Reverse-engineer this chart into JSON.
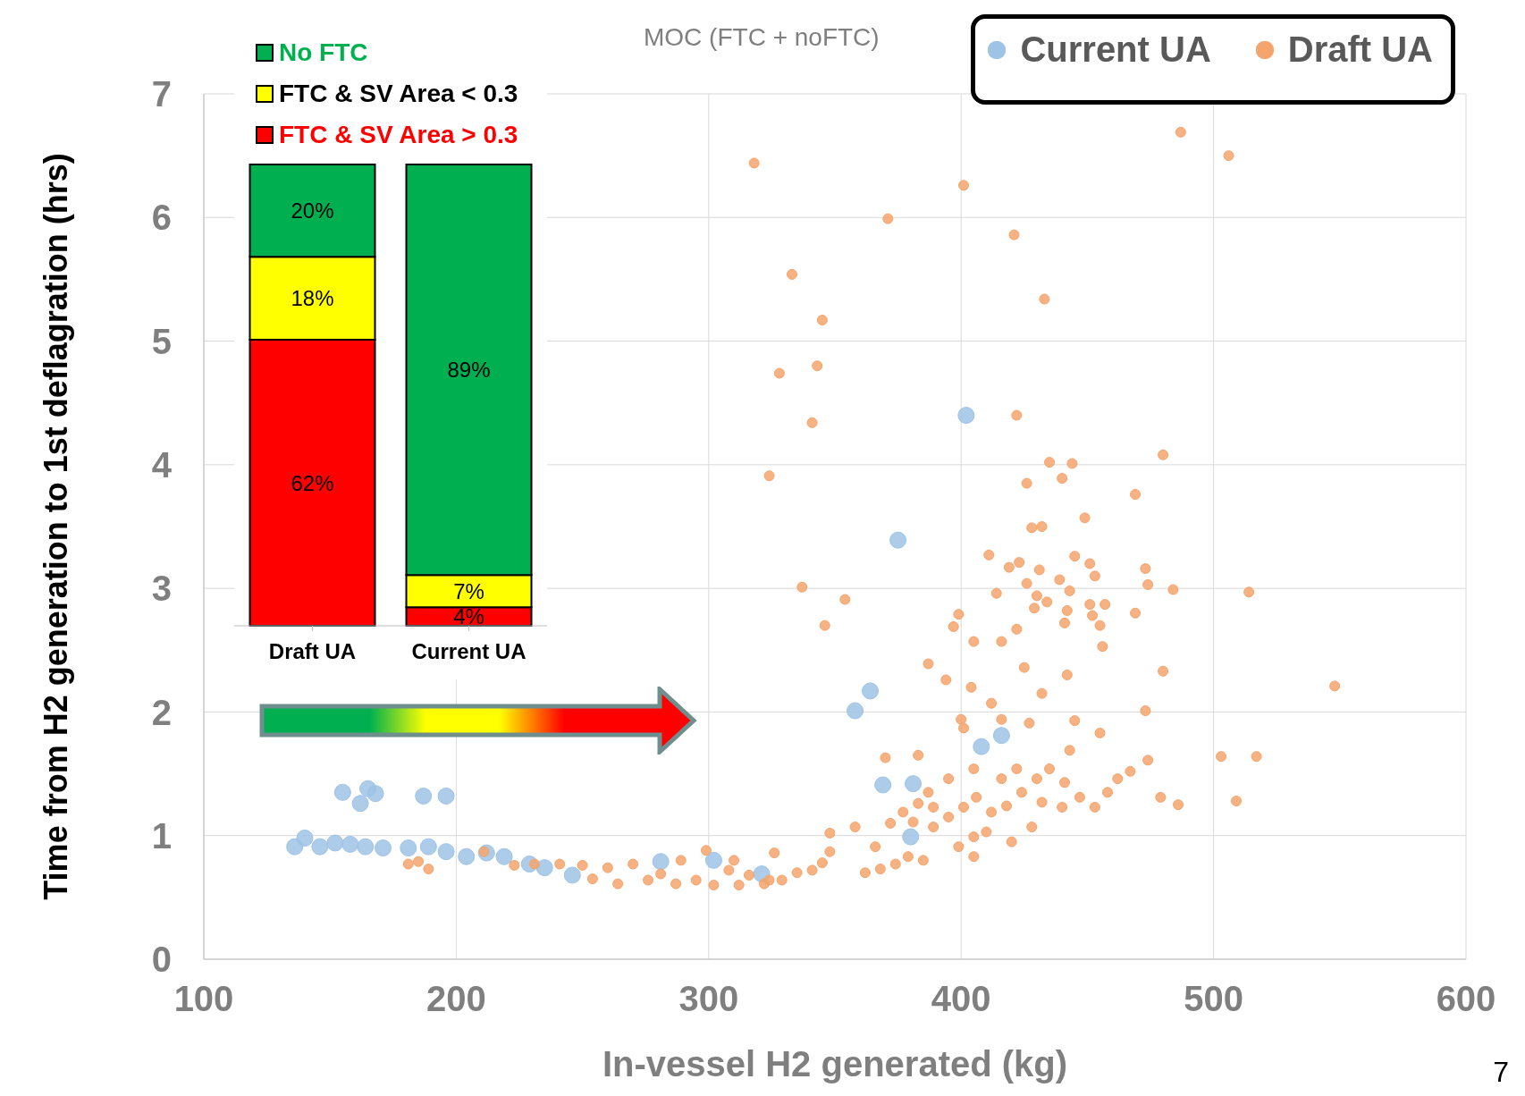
{
  "chart_data": [
    {
      "type": "scatter",
      "xlabel": "In-vessel H2 generated (kg)",
      "ylabel": "Time from H2 generation to 1st deflagration (hrs)",
      "xlim": [
        100,
        600
      ],
      "ylim": [
        0,
        7
      ],
      "xticks": [
        100,
        200,
        300,
        400,
        500,
        600
      ],
      "yticks": [
        0,
        1,
        2,
        3,
        4,
        5,
        6,
        7
      ],
      "grid": true,
      "legend": "top right",
      "marker": "circle",
      "annotations": [
        "MOC (FTC + noFTC)",
        "7"
      ],
      "series": [
        {
          "name": "Current UA",
          "color": "#9dc3e6",
          "x": [
            402,
            375,
            364,
            358,
            416,
            408,
            369,
            381,
            155,
            165,
            168,
            162,
            187,
            196,
            136,
            140,
            146,
            152,
            158,
            164,
            171,
            181,
            189,
            196,
            204,
            212,
            219,
            229,
            235,
            246,
            281,
            302,
            321,
            380
          ],
          "values": [
            4.4,
            3.39,
            2.17,
            2.01,
            1.81,
            1.72,
            1.41,
            1.42,
            1.35,
            1.38,
            1.34,
            1.26,
            1.32,
            1.32,
            0.91,
            0.98,
            0.91,
            0.94,
            0.93,
            0.91,
            0.9,
            0.9,
            0.91,
            0.87,
            0.83,
            0.86,
            0.83,
            0.77,
            0.74,
            0.68,
            0.79,
            0.8,
            0.69,
            0.99
          ]
        },
        {
          "name": "Draft UA",
          "color": "#f4a46c",
          "x": [
            487,
            318,
            506,
            401,
            371,
            421,
            333,
            433,
            345,
            328,
            343,
            341,
            422,
            480,
            324,
            435,
            444,
            426,
            440,
            469,
            449,
            428,
            432,
            411,
            445,
            423,
            419,
            431,
            451,
            473,
            426,
            439,
            453,
            474,
            484,
            514,
            337,
            354,
            414,
            430,
            443,
            434,
            451,
            457,
            429,
            442,
            469,
            452,
            399,
            346,
            397,
            441,
            455,
            422,
            416,
            405,
            456,
            387,
            425,
            480,
            442,
            548,
            394,
            404,
            432,
            412,
            473,
            427,
            445,
            400,
            416,
            455,
            401,
            503,
            517,
            509,
            383,
            370,
            443,
            467,
            474,
            486,
            348,
            362,
            368,
            374,
            379,
            385,
            366,
            372,
            377,
            383,
            389,
            389,
            395,
            401,
            406,
            412,
            418,
            424,
            430,
            435,
            441,
            447,
            453,
            458,
            399,
            405,
            410,
            420,
            428,
            405,
            416,
            422,
            432,
            440,
            462,
            479,
            358,
            395,
            387,
            381,
            405,
            181,
            189,
            185,
            211,
            223,
            231,
            241,
            250,
            254,
            260,
            264,
            270,
            276,
            281,
            287,
            289,
            295,
            299,
            302,
            308,
            312,
            316,
            322,
            326,
            329,
            335,
            341,
            345,
            348,
            310,
            324
          ],
          "values": [
            6.69,
            6.44,
            6.5,
            6.26,
            5.99,
            5.86,
            5.54,
            5.34,
            5.17,
            4.74,
            4.8,
            4.34,
            4.4,
            4.08,
            3.91,
            4.02,
            4.01,
            3.85,
            3.89,
            3.76,
            3.57,
            3.49,
            3.5,
            3.27,
            3.26,
            3.21,
            3.17,
            3.15,
            3.2,
            3.16,
            3.04,
            3.07,
            3.1,
            3.03,
            2.99,
            2.97,
            3.01,
            2.91,
            2.96,
            2.94,
            2.98,
            2.89,
            2.87,
            2.87,
            2.84,
            2.82,
            2.8,
            2.78,
            2.79,
            2.7,
            2.69,
            2.72,
            2.7,
            2.67,
            2.57,
            2.57,
            2.53,
            2.39,
            2.36,
            2.33,
            2.3,
            2.21,
            2.26,
            2.2,
            2.15,
            2.07,
            2.01,
            1.91,
            1.93,
            1.94,
            1.94,
            1.83,
            1.87,
            1.64,
            1.64,
            1.28,
            1.65,
            1.63,
            1.69,
            1.52,
            1.61,
            1.25,
            1.02,
            0.7,
            0.73,
            0.77,
            0.83,
            0.8,
            0.91,
            1.1,
            1.19,
            1.26,
            1.23,
            1.07,
            1.15,
            1.23,
            1.31,
            1.19,
            1.24,
            1.35,
            1.46,
            1.54,
            1.43,
            1.31,
            1.23,
            1.35,
            0.91,
            0.99,
            1.03,
            0.95,
            1.07,
            1.54,
            1.46,
            1.54,
            1.27,
            1.23,
            1.46,
            1.31,
            1.07,
            1.46,
            1.35,
            1.11,
            0.83,
            0.77,
            0.73,
            0.79,
            0.87,
            0.76,
            0.77,
            0.77,
            0.76,
            0.65,
            0.74,
            0.61,
            0.77,
            0.64,
            0.69,
            0.61,
            0.8,
            0.64,
            0.88,
            0.6,
            0.72,
            0.6,
            0.68,
            0.61,
            0.86,
            0.64,
            0.7,
            0.72,
            0.78,
            0.87,
            0.8,
            0.64
          ]
        }
      ]
    },
    {
      "type": "bar",
      "stacked": true,
      "categories": [
        "Draft UA",
        "Current UA"
      ],
      "legend": "top",
      "series": [
        {
          "name": "FTC & SV Area > 0.3",
          "color": "#ff0000",
          "values": [
            62,
            4
          ],
          "value_labels": [
            "62%",
            "4%"
          ]
        },
        {
          "name": "FTC & SV Area < 0.3",
          "color": "#ffff00",
          "values": [
            18,
            7
          ],
          "value_labels": [
            "18%",
            "7%"
          ]
        },
        {
          "name": "No FTC",
          "color": "#00b050",
          "values": [
            20,
            89
          ],
          "value_labels": [
            "20%",
            "89%"
          ]
        }
      ]
    }
  ]
}
